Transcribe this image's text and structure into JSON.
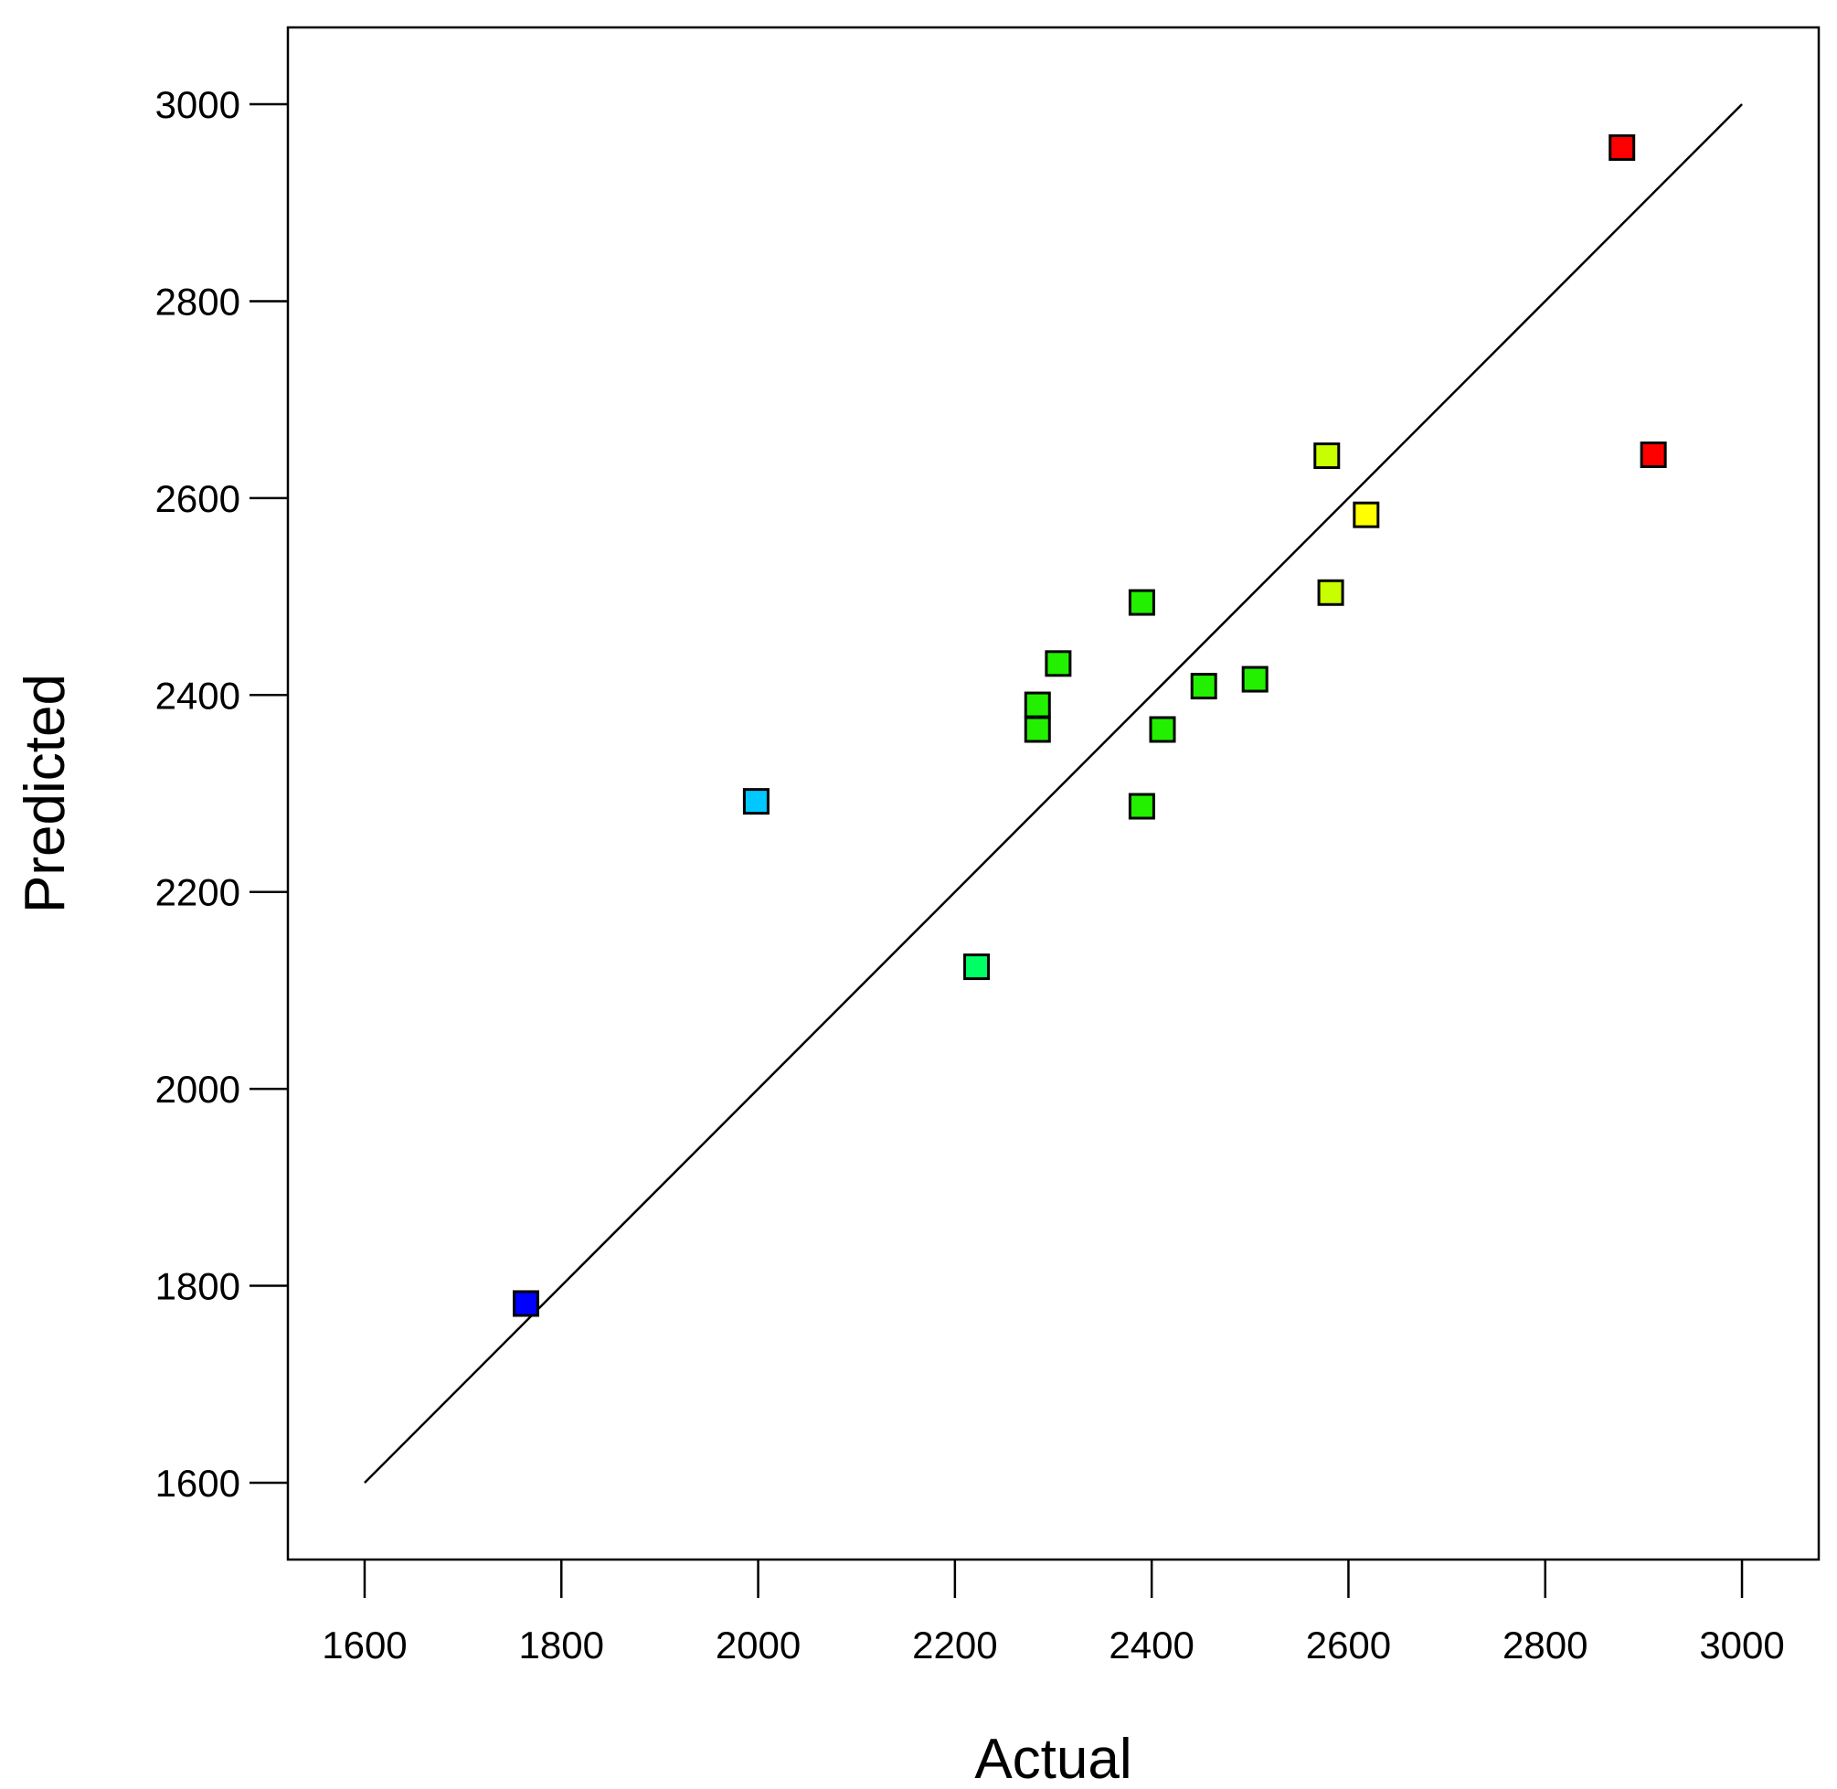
{
  "chart_data": {
    "type": "scatter",
    "title": "",
    "xlabel": "Actual",
    "ylabel": "Predicted",
    "xlim": [
      1522,
      3078
    ],
    "ylim": [
      1522,
      3078
    ],
    "xticks": [
      1600,
      1800,
      2000,
      2200,
      2400,
      2600,
      2800,
      3000
    ],
    "yticks": [
      1600,
      1800,
      2000,
      2200,
      2400,
      2600,
      2800,
      3000
    ],
    "xtick_labels": [
      "1600",
      "1800",
      "2000",
      "2200",
      "2400",
      "2600",
      "2800",
      "3000"
    ],
    "ytick_labels": [
      "1600",
      "1800",
      "2000",
      "2200",
      "2400",
      "2600",
      "2800",
      "3000"
    ],
    "reference_line": {
      "from": [
        1600,
        1600
      ],
      "to": [
        3000,
        3000
      ]
    },
    "grid": false,
    "points": [
      {
        "x": 1764,
        "y": 1782,
        "color": "#0000ff"
      },
      {
        "x": 1998,
        "y": 2292,
        "color": "#00c8ff"
      },
      {
        "x": 2222,
        "y": 2124,
        "color": "#00ff64"
      },
      {
        "x": 2284,
        "y": 2390,
        "color": "#22f000"
      },
      {
        "x": 2284,
        "y": 2365,
        "color": "#22f000"
      },
      {
        "x": 2305,
        "y": 2432,
        "color": "#22f000"
      },
      {
        "x": 2390,
        "y": 2494,
        "color": "#22f000"
      },
      {
        "x": 2390,
        "y": 2287,
        "color": "#22f000"
      },
      {
        "x": 2411,
        "y": 2365,
        "color": "#22f000"
      },
      {
        "x": 2453,
        "y": 2409,
        "color": "#22f000"
      },
      {
        "x": 2505,
        "y": 2416,
        "color": "#22f000"
      },
      {
        "x": 2578,
        "y": 2643,
        "color": "#c8ff00"
      },
      {
        "x": 2582,
        "y": 2504,
        "color": "#c8ff00"
      },
      {
        "x": 2618,
        "y": 2583,
        "color": "#ffff00"
      },
      {
        "x": 2878,
        "y": 2956,
        "color": "#ff0000"
      },
      {
        "x": 2910,
        "y": 2644,
        "color": "#ff0000"
      }
    ]
  }
}
